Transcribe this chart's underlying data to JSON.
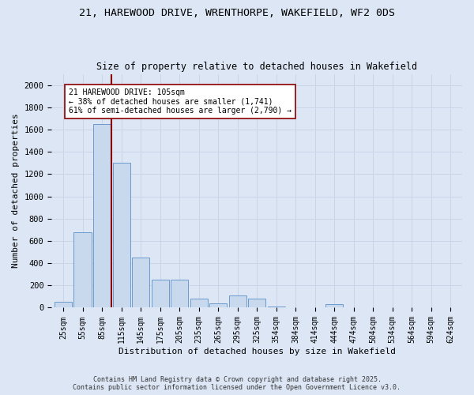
{
  "title_line1": "21, HAREWOOD DRIVE, WRENTHORPE, WAKEFIELD, WF2 0DS",
  "title_line2": "Size of property relative to detached houses in Wakefield",
  "xlabel": "Distribution of detached houses by size in Wakefield",
  "ylabel": "Number of detached properties",
  "bar_labels": [
    "25sqm",
    "55sqm",
    "85sqm",
    "115sqm",
    "145sqm",
    "175sqm",
    "205sqm",
    "235sqm",
    "265sqm",
    "295sqm",
    "325sqm",
    "354sqm",
    "384sqm",
    "414sqm",
    "444sqm",
    "474sqm",
    "504sqm",
    "534sqm",
    "564sqm",
    "594sqm",
    "624sqm"
  ],
  "bar_heights": [
    50,
    680,
    1650,
    1300,
    450,
    250,
    250,
    80,
    40,
    110,
    80,
    10,
    0,
    0,
    30,
    0,
    0,
    0,
    0,
    0,
    0
  ],
  "bar_color": "#c9d9ed",
  "bar_edge_color": "#5b8fc9",
  "property_label": "21 HAREWOOD DRIVE: 105sqm",
  "annotation_line2": "← 38% of detached houses are smaller (1,741)",
  "annotation_line3": "61% of semi-detached houses are larger (2,790) →",
  "vline_color": "#8b0000",
  "annotation_box_color": "#ffffff",
  "annotation_box_edge_color": "#8b0000",
  "ylim": [
    0,
    2100
  ],
  "yticks": [
    0,
    200,
    400,
    600,
    800,
    1000,
    1200,
    1400,
    1600,
    1800,
    2000
  ],
  "grid_color": "#c8d4e8",
  "bg_color": "#dce6f5",
  "fig_color": "#dce6f5",
  "footnote1": "Contains HM Land Registry data © Crown copyright and database right 2025.",
  "footnote2": "Contains public sector information licensed under the Open Government Licence v3.0."
}
